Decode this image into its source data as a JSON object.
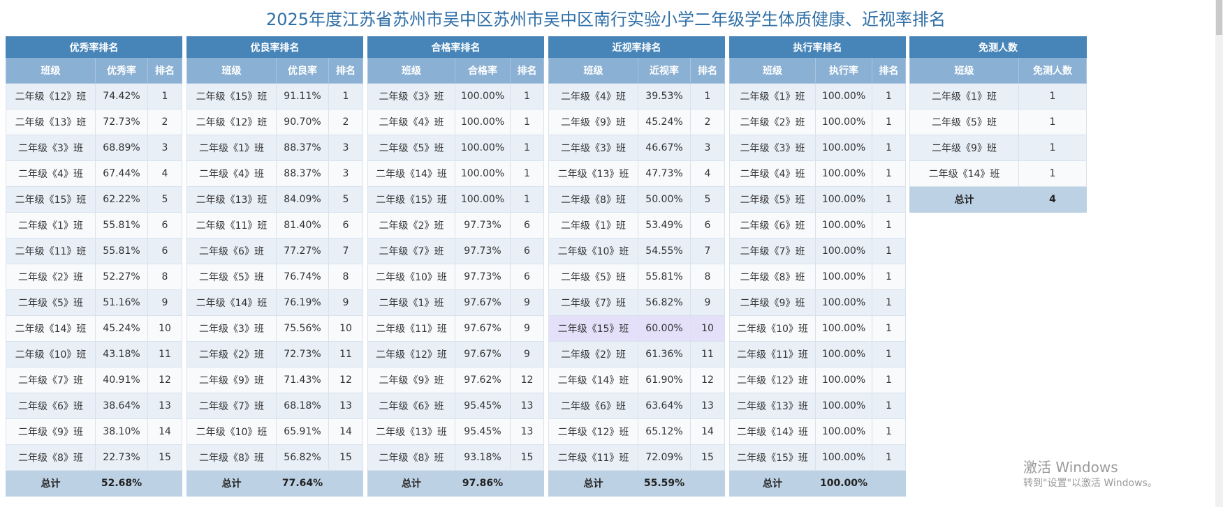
{
  "title": "2025年度江苏省苏州市吴中区苏州市吴中区南行实验小学二年级学生体质健康、近视率排名",
  "tables": [
    {
      "title": "优秀率排名",
      "headers": [
        "班级",
        "优秀率",
        "排名"
      ],
      "rows": [
        [
          "二年级《12》班",
          "74.42%",
          "1"
        ],
        [
          "二年级《13》班",
          "72.73%",
          "2"
        ],
        [
          "二年级《3》班",
          "68.89%",
          "3"
        ],
        [
          "二年级《4》班",
          "67.44%",
          "4"
        ],
        [
          "二年级《15》班",
          "62.22%",
          "5"
        ],
        [
          "二年级《1》班",
          "55.81%",
          "6"
        ],
        [
          "二年级《11》班",
          "55.81%",
          "6"
        ],
        [
          "二年级《2》班",
          "52.27%",
          "8"
        ],
        [
          "二年级《5》班",
          "51.16%",
          "9"
        ],
        [
          "二年级《14》班",
          "45.24%",
          "10"
        ],
        [
          "二年级《10》班",
          "43.18%",
          "11"
        ],
        [
          "二年级《7》班",
          "40.91%",
          "12"
        ],
        [
          "二年级《6》班",
          "38.64%",
          "13"
        ],
        [
          "二年级《9》班",
          "38.10%",
          "14"
        ],
        [
          "二年级《8》班",
          "22.73%",
          "15"
        ]
      ],
      "total": [
        "总计",
        "52.68%",
        ""
      ]
    },
    {
      "title": "优良率排名",
      "headers": [
        "班级",
        "优良率",
        "排名"
      ],
      "rows": [
        [
          "二年级《15》班",
          "91.11%",
          "1"
        ],
        [
          "二年级《12》班",
          "90.70%",
          "2"
        ],
        [
          "二年级《1》班",
          "88.37%",
          "3"
        ],
        [
          "二年级《4》班",
          "88.37%",
          "3"
        ],
        [
          "二年级《13》班",
          "84.09%",
          "5"
        ],
        [
          "二年级《11》班",
          "81.40%",
          "6"
        ],
        [
          "二年级《6》班",
          "77.27%",
          "7"
        ],
        [
          "二年级《5》班",
          "76.74%",
          "8"
        ],
        [
          "二年级《14》班",
          "76.19%",
          "9"
        ],
        [
          "二年级《3》班",
          "75.56%",
          "10"
        ],
        [
          "二年级《2》班",
          "72.73%",
          "11"
        ],
        [
          "二年级《9》班",
          "71.43%",
          "12"
        ],
        [
          "二年级《7》班",
          "68.18%",
          "13"
        ],
        [
          "二年级《10》班",
          "65.91%",
          "14"
        ],
        [
          "二年级《8》班",
          "56.82%",
          "15"
        ]
      ],
      "total": [
        "总计",
        "77.64%",
        ""
      ]
    },
    {
      "title": "合格率排名",
      "headers": [
        "班级",
        "合格率",
        "排名"
      ],
      "rows": [
        [
          "二年级《3》班",
          "100.00%",
          "1"
        ],
        [
          "二年级《4》班",
          "100.00%",
          "1"
        ],
        [
          "二年级《5》班",
          "100.00%",
          "1"
        ],
        [
          "二年级《14》班",
          "100.00%",
          "1"
        ],
        [
          "二年级《15》班",
          "100.00%",
          "1"
        ],
        [
          "二年级《2》班",
          "97.73%",
          "6"
        ],
        [
          "二年级《7》班",
          "97.73%",
          "6"
        ],
        [
          "二年级《10》班",
          "97.73%",
          "6"
        ],
        [
          "二年级《1》班",
          "97.67%",
          "9"
        ],
        [
          "二年级《11》班",
          "97.67%",
          "9"
        ],
        [
          "二年级《12》班",
          "97.67%",
          "9"
        ],
        [
          "二年级《9》班",
          "97.62%",
          "12"
        ],
        [
          "二年级《6》班",
          "95.45%",
          "13"
        ],
        [
          "二年级《13》班",
          "95.45%",
          "13"
        ],
        [
          "二年级《8》班",
          "93.18%",
          "15"
        ]
      ],
      "total": [
        "总计",
        "97.86%",
        ""
      ]
    },
    {
      "title": "近视率排名",
      "headers": [
        "班级",
        "近视率",
        "排名"
      ],
      "highlight_row": 9,
      "rows": [
        [
          "二年级《4》班",
          "39.53%",
          "1"
        ],
        [
          "二年级《9》班",
          "45.24%",
          "2"
        ],
        [
          "二年级《3》班",
          "46.67%",
          "3"
        ],
        [
          "二年级《13》班",
          "47.73%",
          "4"
        ],
        [
          "二年级《8》班",
          "50.00%",
          "5"
        ],
        [
          "二年级《1》班",
          "53.49%",
          "6"
        ],
        [
          "二年级《10》班",
          "54.55%",
          "7"
        ],
        [
          "二年级《5》班",
          "55.81%",
          "8"
        ],
        [
          "二年级《7》班",
          "56.82%",
          "9"
        ],
        [
          "二年级《15》班",
          "60.00%",
          "10"
        ],
        [
          "二年级《2》班",
          "61.36%",
          "11"
        ],
        [
          "二年级《14》班",
          "61.90%",
          "12"
        ],
        [
          "二年级《6》班",
          "63.64%",
          "13"
        ],
        [
          "二年级《12》班",
          "65.12%",
          "14"
        ],
        [
          "二年级《11》班",
          "72.09%",
          "15"
        ]
      ],
      "total": [
        "总计",
        "55.59%",
        ""
      ]
    },
    {
      "title": "执行率排名",
      "headers": [
        "班级",
        "执行率",
        "排名"
      ],
      "rows": [
        [
          "二年级《1》班",
          "100.00%",
          "1"
        ],
        [
          "二年级《2》班",
          "100.00%",
          "1"
        ],
        [
          "二年级《3》班",
          "100.00%",
          "1"
        ],
        [
          "二年级《4》班",
          "100.00%",
          "1"
        ],
        [
          "二年级《5》班",
          "100.00%",
          "1"
        ],
        [
          "二年级《6》班",
          "100.00%",
          "1"
        ],
        [
          "二年级《7》班",
          "100.00%",
          "1"
        ],
        [
          "二年级《8》班",
          "100.00%",
          "1"
        ],
        [
          "二年级《9》班",
          "100.00%",
          "1"
        ],
        [
          "二年级《10》班",
          "100.00%",
          "1"
        ],
        [
          "二年级《11》班",
          "100.00%",
          "1"
        ],
        [
          "二年级《12》班",
          "100.00%",
          "1"
        ],
        [
          "二年级《13》班",
          "100.00%",
          "1"
        ],
        [
          "二年级《14》班",
          "100.00%",
          "1"
        ],
        [
          "二年级《15》班",
          "100.00%",
          "1"
        ]
      ],
      "total": [
        "总计",
        "100.00%",
        ""
      ]
    },
    {
      "title": "免测人数",
      "headers": [
        "班级",
        "免测人数"
      ],
      "rows": [
        [
          "二年级《1》班",
          "1"
        ],
        [
          "二年级《5》班",
          "1"
        ],
        [
          "二年级《9》班",
          "1"
        ],
        [
          "二年级《14》班",
          "1"
        ]
      ],
      "total": [
        "总计",
        "4"
      ]
    }
  ],
  "watermark": {
    "line1": "激活 Windows",
    "line2": "转到\"设置\"以激活 Windows。"
  },
  "colors": {
    "title": "#2f6fa7",
    "header": "#4785b9",
    "subheader": "#8ab0d3",
    "row_odd": "#e8eff7",
    "row_even": "#f8fafc",
    "total": "#bdd1e4",
    "highlight": "#e4e0fa"
  }
}
